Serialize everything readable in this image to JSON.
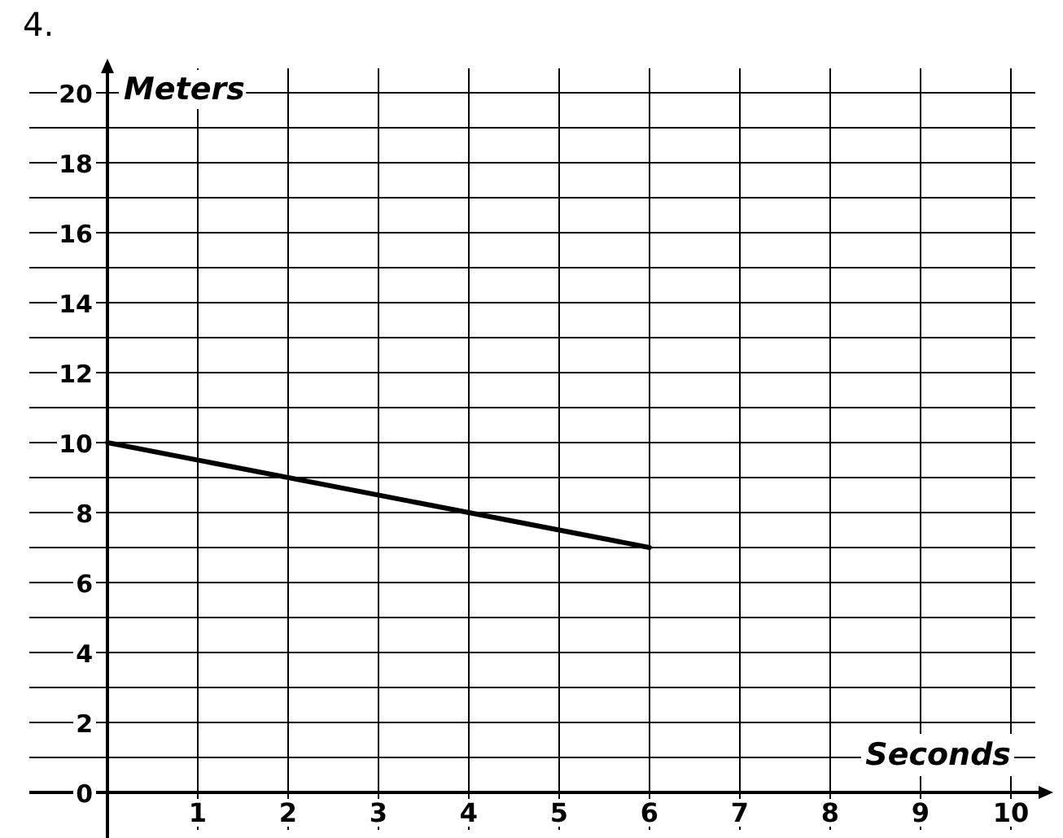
{
  "chart_data": {
    "type": "line",
    "title": "4.",
    "xlabel": "Seconds",
    "ylabel": "Meters",
    "x": [
      0,
      6
    ],
    "series": [
      {
        "color": "#000000",
        "values": [
          10,
          7
        ]
      }
    ],
    "xlim": [
      0,
      10
    ],
    "ylim": [
      0,
      20
    ],
    "xticks": [
      1,
      2,
      3,
      4,
      5,
      6,
      7,
      8,
      9,
      10
    ],
    "yticks": [
      0,
      {
        "value": 1,
        "label": null
      },
      2,
      {
        "value": 3,
        "label": null
      },
      4,
      {
        "value": 5,
        "label": null
      },
      6,
      {
        "value": 7,
        "label": null
      },
      8,
      {
        "value": 9,
        "label": null
      },
      10,
      {
        "value": 11,
        "label": null
      },
      12,
      {
        "value": 13,
        "label": null
      },
      14,
      {
        "value": 15,
        "label": null
      },
      16,
      {
        "value": 17,
        "label": null
      },
      18,
      {
        "value": 19,
        "label": null
      },
      20
    ],
    "grid": true,
    "marker": "none",
    "line_style": "solid"
  }
}
